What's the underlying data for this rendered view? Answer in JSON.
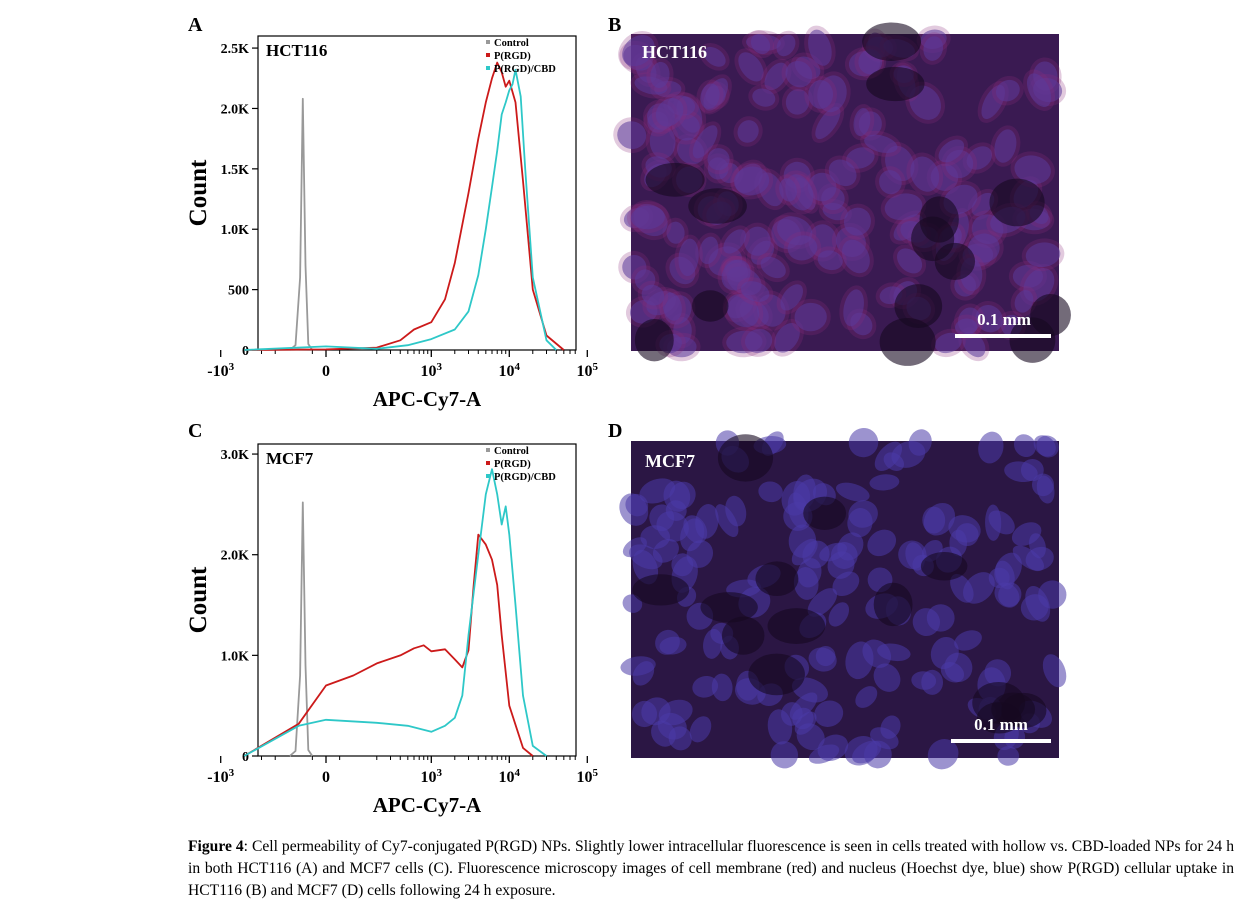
{
  "panels": {
    "A": {
      "letter": "A"
    },
    "B": {
      "letter": "B",
      "label": "HCT116",
      "scale": "0.1 mm"
    },
    "C": {
      "letter": "C"
    },
    "D": {
      "letter": "D",
      "label": "MCF7",
      "scale": "0.1 mm"
    }
  },
  "caption": {
    "lead": "Figure 4",
    "text": ": Cell permeability of Cy7-conjugated P(RGD) NPs. Slightly lower intracellular fluorescence is seen in cells treated with hollow vs. CBD-loaded NPs for 24 h in both HCT116 (A) and MCF7 cells (C). Fluorescence microscopy images of cell membrane (red) and nucleus (Hoechst dye, blue) show P(RGD) cellular uptake in HCT116 (B) and MCF7 (D) cells following 24 h exposure."
  },
  "colors": {
    "control": "#999999",
    "prgd": "#cc1a1a",
    "prgd_cbd": "#2ec8c8",
    "micro_bg": "#2a1540"
  },
  "chart_data": [
    {
      "type": "line",
      "title": "HCT116",
      "xlabel": "APC-Cy7-A",
      "ylabel": "Count",
      "xscale": "biexponential",
      "x_ticks": [
        "-10^3",
        "0",
        "10^3",
        "10^4",
        "10^5"
      ],
      "y_ticks": [
        "0",
        "500",
        "1.0K",
        "1.5K",
        "2.0K",
        "2.5K"
      ],
      "ylim": [
        0,
        2600
      ],
      "legend": "top-right",
      "series": [
        {
          "name": "Control",
          "x": [
            -130,
            -110,
            -95,
            -85,
            -75,
            -65,
            -50
          ],
          "y": [
            0,
            40,
            600,
            2080,
            700,
            50,
            0
          ]
        },
        {
          "name": "P(RGD)",
          "x": [
            -500,
            0,
            200,
            400,
            600,
            1000,
            1500,
            2000,
            3000,
            4000,
            5000,
            6000,
            7000,
            8000,
            9000,
            10000,
            12000,
            15000,
            20000,
            30000,
            50000
          ],
          "y": [
            0,
            5,
            20,
            80,
            170,
            230,
            420,
            720,
            1300,
            1750,
            2050,
            2250,
            2380,
            2300,
            2180,
            2230,
            2050,
            1400,
            500,
            120,
            0
          ]
        },
        {
          "name": "P(RGD)/CBD",
          "x": [
            -500,
            0,
            200,
            500,
            1000,
            2000,
            3000,
            4000,
            5000,
            6000,
            7000,
            8000,
            9000,
            10000,
            11000,
            12000,
            14000,
            16000,
            20000,
            30000,
            40000
          ],
          "y": [
            0,
            30,
            10,
            40,
            90,
            170,
            320,
            620,
            1000,
            1350,
            1650,
            1950,
            2050,
            2150,
            2200,
            2320,
            2100,
            1500,
            600,
            80,
            0
          ]
        }
      ]
    },
    {
      "type": "line",
      "title": "MCF7",
      "xlabel": "APC-Cy7-A",
      "ylabel": "Count",
      "xscale": "biexponential",
      "x_ticks": [
        "-10^3",
        "0",
        "10^3",
        "10^4",
        "10^5"
      ],
      "y_ticks": [
        "0",
        "1.0K",
        "2.0K",
        "3.0K"
      ],
      "ylim": [
        0,
        3100
      ],
      "legend": "top-right",
      "series": [
        {
          "name": "Control",
          "x": [
            -130,
            -110,
            -95,
            -85,
            -75,
            -65,
            -50
          ],
          "y": [
            0,
            50,
            800,
            2520,
            900,
            60,
            0
          ]
        },
        {
          "name": "P(RGD)",
          "x": [
            -500,
            -100,
            0,
            100,
            200,
            400,
            600,
            800,
            1000,
            1500,
            2000,
            2500,
            3000,
            3500,
            4000,
            5000,
            6000,
            7000,
            8000,
            10000,
            15000,
            20000
          ],
          "y": [
            0,
            320,
            700,
            800,
            920,
            1000,
            1070,
            1100,
            1040,
            1060,
            960,
            880,
            1050,
            1700,
            2200,
            2100,
            1950,
            1700,
            1200,
            500,
            80,
            0
          ]
        },
        {
          "name": "P(RGD)/CBD",
          "x": [
            -500,
            -100,
            0,
            200,
            500,
            1000,
            1500,
            2000,
            2500,
            3000,
            4000,
            5000,
            6000,
            7000,
            8000,
            9000,
            10000,
            12000,
            15000,
            20000,
            30000
          ],
          "y": [
            0,
            300,
            360,
            330,
            300,
            240,
            300,
            380,
            600,
            1200,
            2000,
            2600,
            2850,
            2600,
            2300,
            2480,
            2200,
            1500,
            600,
            100,
            0
          ]
        }
      ]
    }
  ]
}
